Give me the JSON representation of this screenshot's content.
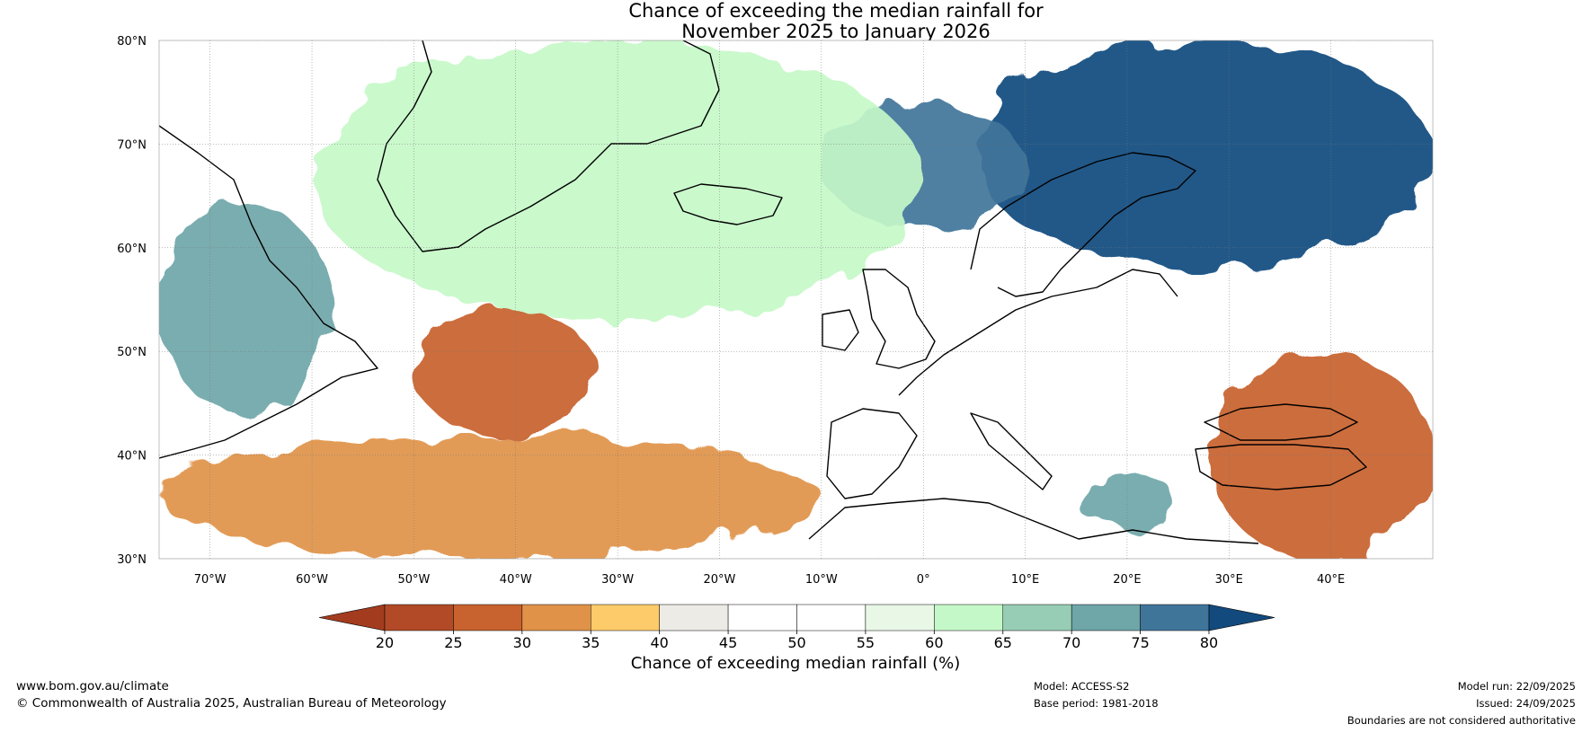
{
  "chart_data": {
    "type": "heatmap",
    "title": [
      "Chance of exceeding the median rainfall for",
      "November 2025 to January 2026"
    ],
    "lon_range": [
      -75,
      50
    ],
    "lat_range": [
      30,
      80
    ],
    "x_ticks": [
      {
        "lon": -70,
        "label": "70°W"
      },
      {
        "lon": -60,
        "label": "60°W"
      },
      {
        "lon": -50,
        "label": "50°W"
      },
      {
        "lon": -40,
        "label": "40°W"
      },
      {
        "lon": -30,
        "label": "30°W"
      },
      {
        "lon": -20,
        "label": "20°W"
      },
      {
        "lon": -10,
        "label": "10°W"
      },
      {
        "lon": 0,
        "label": "0°"
      },
      {
        "lon": 10,
        "label": "10°E"
      },
      {
        "lon": 20,
        "label": "20°E"
      },
      {
        "lon": 30,
        "label": "30°E"
      },
      {
        "lon": 40,
        "label": "40°E"
      }
    ],
    "y_ticks": [
      {
        "lat": 80,
        "label": "80°N"
      },
      {
        "lat": 70,
        "label": "70°N"
      },
      {
        "lat": 60,
        "label": "60°N"
      },
      {
        "lat": 50,
        "label": "50°N"
      },
      {
        "lat": 40,
        "label": "40°N"
      },
      {
        "lat": 30,
        "label": "30°N"
      }
    ],
    "colorbar": {
      "label": "Chance of exceeding median rainfall (%)",
      "levels": [
        "20",
        "25",
        "30",
        "35",
        "40",
        "45",
        "50",
        "55",
        "60",
        "65",
        "70",
        "75",
        "80"
      ],
      "under_color": "#a33c1e",
      "over_color": "#124a7e",
      "colors": [
        "#b24a27",
        "#c8622e",
        "#e09248",
        "#fecb6a",
        "#edebe6",
        "#ffffff",
        "#ffffff",
        "#e9f7e7",
        "#c5f8c8",
        "#97cdb4",
        "#6fa6a8",
        "#40759a"
      ]
    },
    "regions": [
      {
        "name": "wet-barents-scandinavia",
        "category": "75-80+",
        "lon": [
          5,
          50
        ],
        "lat": [
          58,
          80
        ],
        "value": 80
      },
      {
        "name": "wet-norwegian-sea",
        "category": "75-80",
        "lon": [
          -10,
          10
        ],
        "lat": [
          62,
          74
        ],
        "value": 78
      },
      {
        "name": "wet-labrador",
        "category": "65-75",
        "lon": [
          -75,
          -58
        ],
        "lat": [
          44,
          64
        ],
        "value": 72
      },
      {
        "name": "moist-north-atlantic",
        "category": "60-65",
        "lon": [
          -60,
          0
        ],
        "lat": [
          53,
          80
        ],
        "value": 62
      },
      {
        "name": "dry-central-atlantic",
        "category": "25-35",
        "lon": [
          -50,
          -32
        ],
        "lat": [
          42,
          54
        ],
        "value": 28
      },
      {
        "name": "dry-subtropical-atlantic",
        "category": "25-35",
        "lon": [
          -75,
          -10
        ],
        "lat": [
          30,
          42
        ],
        "value": 30
      },
      {
        "name": "dry-east-med-turkey",
        "category": "20-35",
        "lon": [
          28,
          50
        ],
        "lat": [
          30,
          50
        ],
        "value": 25
      },
      {
        "name": "wet-central-med",
        "category": "70-75",
        "lon": [
          15,
          25
        ],
        "lat": [
          33,
          38
        ],
        "value": 74
      }
    ]
  },
  "footer": {
    "website": "www.bom.gov.au/climate",
    "copyright": "© Commonwealth of Australia 2025, Australian Bureau of Meteorology",
    "model": "Model: ACCESS-S2",
    "base_period": "Base period: 1981-2018",
    "model_run": "Model run: 22/09/2025",
    "issued": "Issued: 24/09/2025",
    "disclaimer": "Boundaries are not considered authoritative"
  }
}
